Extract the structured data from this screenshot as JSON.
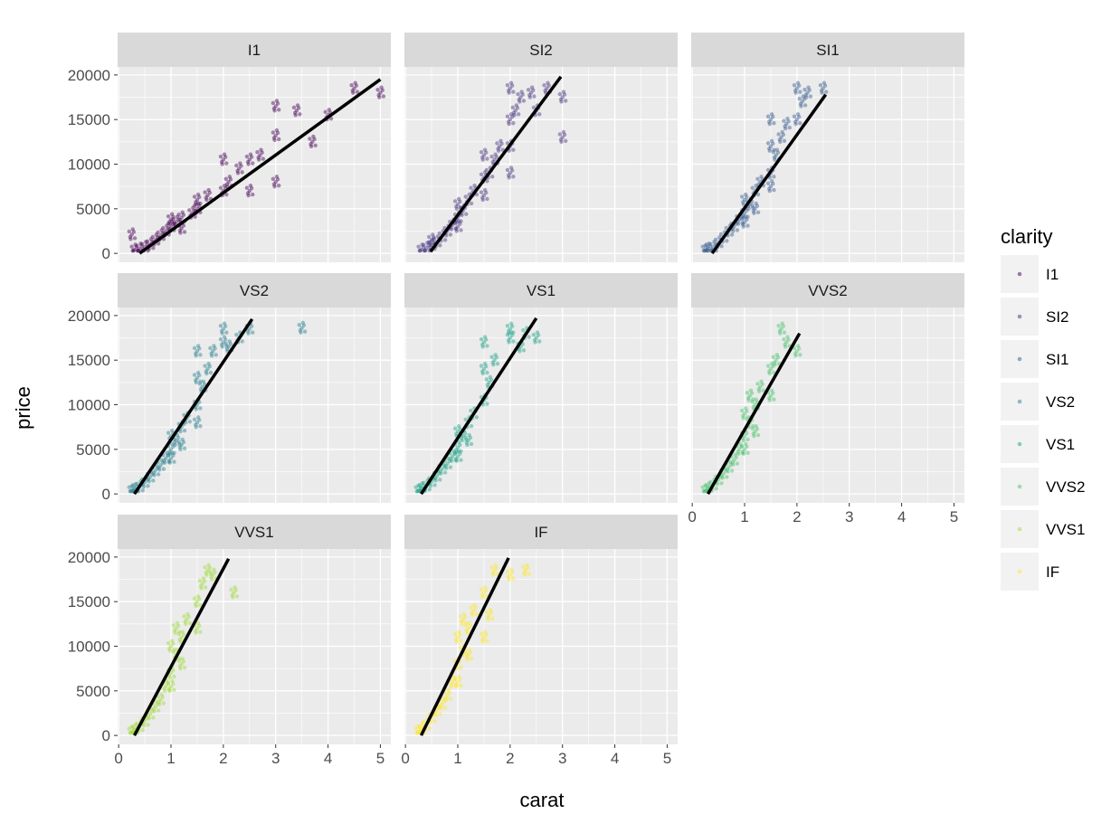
{
  "chart_data": {
    "type": "scatter",
    "title": "",
    "xlabel": "carat",
    "ylabel": "price",
    "xlim": [
      -0.02,
      5.2
    ],
    "ylim": [
      -1000,
      20900
    ],
    "xticks": [
      0,
      1,
      2,
      3,
      4,
      5
    ],
    "yticks": [
      0,
      5000,
      10000,
      15000,
      20000
    ],
    "grid": true,
    "facet_by": "clarity",
    "legend": {
      "title": "clarity",
      "position": "right"
    },
    "series": [
      {
        "name": "I1",
        "color": "#440154",
        "fit_line": [
          [
            0.4,
            0
          ],
          [
            5.0,
            19500
          ]
        ],
        "points": [
          [
            0.3,
            400
          ],
          [
            0.4,
            500
          ],
          [
            0.5,
            700
          ],
          [
            0.6,
            1000
          ],
          [
            0.7,
            1500
          ],
          [
            0.8,
            2000
          ],
          [
            0.9,
            2500
          ],
          [
            1.0,
            3000
          ],
          [
            1.0,
            3800
          ],
          [
            1.1,
            3500
          ],
          [
            1.2,
            4000
          ],
          [
            1.5,
            5000
          ],
          [
            1.5,
            6000
          ],
          [
            1.4,
            4500
          ],
          [
            1.7,
            6500
          ],
          [
            2.0,
            7000
          ],
          [
            2.0,
            10500
          ],
          [
            2.1,
            8000
          ],
          [
            2.3,
            9500
          ],
          [
            2.5,
            10500
          ],
          [
            2.7,
            11000
          ],
          [
            3.0,
            13200
          ],
          [
            3.0,
            16500
          ],
          [
            3.0,
            8000
          ],
          [
            3.4,
            16000
          ],
          [
            3.7,
            12500
          ],
          [
            4.0,
            15500
          ],
          [
            4.5,
            18500
          ],
          [
            5.0,
            18000
          ],
          [
            0.25,
            2100
          ],
          [
            1.2,
            2800
          ],
          [
            2.5,
            7000
          ]
        ]
      },
      {
        "name": "SI2",
        "color": "#46327e",
        "fit_line": [
          [
            0.48,
            200
          ],
          [
            2.97,
            19800
          ]
        ],
        "points": [
          [
            0.3,
            400
          ],
          [
            0.4,
            600
          ],
          [
            0.5,
            900
          ],
          [
            0.6,
            1300
          ],
          [
            0.7,
            1900
          ],
          [
            0.8,
            2500
          ],
          [
            0.9,
            3200
          ],
          [
            1.0,
            4000
          ],
          [
            1.0,
            5500
          ],
          [
            1.1,
            4800
          ],
          [
            1.2,
            6000
          ],
          [
            1.3,
            7000
          ],
          [
            1.5,
            8500
          ],
          [
            1.5,
            11000
          ],
          [
            1.6,
            9000
          ],
          [
            1.7,
            10500
          ],
          [
            1.8,
            12000
          ],
          [
            2.0,
            12000
          ],
          [
            2.0,
            15000
          ],
          [
            2.0,
            18500
          ],
          [
            2.1,
            16000
          ],
          [
            2.2,
            17500
          ],
          [
            2.4,
            18000
          ],
          [
            2.5,
            16000
          ],
          [
            2.7,
            18500
          ],
          [
            3.0,
            17500
          ],
          [
            3.0,
            13000
          ],
          [
            0.5,
            1500
          ],
          [
            1.0,
            3000
          ],
          [
            1.5,
            6500
          ],
          [
            2.0,
            9000
          ]
        ]
      },
      {
        "name": "SI1",
        "color": "#365c8d",
        "fit_line": [
          [
            0.38,
            0
          ],
          [
            2.55,
            17800
          ]
        ],
        "points": [
          [
            0.25,
            400
          ],
          [
            0.3,
            500
          ],
          [
            0.4,
            700
          ],
          [
            0.5,
            1200
          ],
          [
            0.6,
            1800
          ],
          [
            0.7,
            2500
          ],
          [
            0.8,
            3000
          ],
          [
            0.9,
            3800
          ],
          [
            1.0,
            4500
          ],
          [
            1.0,
            6000
          ],
          [
            1.1,
            5500
          ],
          [
            1.2,
            7000
          ],
          [
            1.3,
            8000
          ],
          [
            1.5,
            9000
          ],
          [
            1.5,
            12000
          ],
          [
            1.5,
            15000
          ],
          [
            1.6,
            11000
          ],
          [
            1.7,
            13000
          ],
          [
            1.8,
            14500
          ],
          [
            2.0,
            15000
          ],
          [
            2.0,
            18500
          ],
          [
            2.1,
            17000
          ],
          [
            2.2,
            18000
          ],
          [
            2.5,
            18500
          ],
          [
            1.0,
            3500
          ],
          [
            1.2,
            5000
          ],
          [
            1.5,
            7500
          ]
        ]
      },
      {
        "name": "VS2",
        "color": "#277f8e",
        "fit_line": [
          [
            0.3,
            0
          ],
          [
            2.55,
            19600
          ]
        ],
        "points": [
          [
            0.25,
            400
          ],
          [
            0.3,
            500
          ],
          [
            0.4,
            800
          ],
          [
            0.5,
            1300
          ],
          [
            0.6,
            1900
          ],
          [
            0.7,
            2600
          ],
          [
            0.8,
            3200
          ],
          [
            0.9,
            4000
          ],
          [
            1.0,
            5000
          ],
          [
            1.0,
            6500
          ],
          [
            1.1,
            6000
          ],
          [
            1.2,
            7500
          ],
          [
            1.3,
            8500
          ],
          [
            1.5,
            10000
          ],
          [
            1.5,
            13000
          ],
          [
            1.5,
            16000
          ],
          [
            1.6,
            12000
          ],
          [
            1.7,
            14000
          ],
          [
            1.8,
            16000
          ],
          [
            2.0,
            17000
          ],
          [
            2.0,
            18500
          ],
          [
            2.1,
            16500
          ],
          [
            2.3,
            17500
          ],
          [
            2.5,
            18500
          ],
          [
            3.5,
            18600
          ],
          [
            1.0,
            4000
          ],
          [
            1.2,
            5500
          ],
          [
            1.5,
            8000
          ]
        ]
      },
      {
        "name": "VS1",
        "color": "#1fa187",
        "fit_line": [
          [
            0.3,
            0
          ],
          [
            2.5,
            19700
          ]
        ],
        "points": [
          [
            0.25,
            400
          ],
          [
            0.3,
            600
          ],
          [
            0.4,
            900
          ],
          [
            0.5,
            1400
          ],
          [
            0.6,
            2000
          ],
          [
            0.7,
            2800
          ],
          [
            0.8,
            3400
          ],
          [
            0.9,
            4200
          ],
          [
            1.0,
            5200
          ],
          [
            1.0,
            7000
          ],
          [
            1.1,
            6500
          ],
          [
            1.2,
            8000
          ],
          [
            1.3,
            9000
          ],
          [
            1.5,
            10500
          ],
          [
            1.5,
            14000
          ],
          [
            1.5,
            17000
          ],
          [
            1.6,
            12500
          ],
          [
            1.7,
            15000
          ],
          [
            2.0,
            17500
          ],
          [
            2.0,
            18500
          ],
          [
            2.2,
            16500
          ],
          [
            2.3,
            18000
          ],
          [
            2.5,
            17500
          ],
          [
            1.0,
            4200
          ],
          [
            1.2,
            6000
          ]
        ]
      },
      {
        "name": "VVS2",
        "color": "#4ac16d",
        "fit_line": [
          [
            0.3,
            0
          ],
          [
            2.05,
            18000
          ]
        ],
        "points": [
          [
            0.25,
            400
          ],
          [
            0.3,
            600
          ],
          [
            0.4,
            1000
          ],
          [
            0.5,
            1600
          ],
          [
            0.6,
            2300
          ],
          [
            0.7,
            3000
          ],
          [
            0.8,
            3800
          ],
          [
            0.9,
            5000
          ],
          [
            1.0,
            6500
          ],
          [
            1.0,
            9000
          ],
          [
            1.1,
            8000
          ],
          [
            1.1,
            11000
          ],
          [
            1.2,
            10000
          ],
          [
            1.3,
            12000
          ],
          [
            1.5,
            11000
          ],
          [
            1.5,
            14000
          ],
          [
            1.6,
            15000
          ],
          [
            1.7,
            18500
          ],
          [
            1.8,
            17000
          ],
          [
            2.0,
            16000
          ],
          [
            1.0,
            5000
          ],
          [
            1.2,
            7000
          ]
        ]
      },
      {
        "name": "VVS1",
        "color": "#a0da39",
        "fit_line": [
          [
            0.3,
            0
          ],
          [
            2.1,
            19800
          ]
        ],
        "points": [
          [
            0.25,
            400
          ],
          [
            0.3,
            600
          ],
          [
            0.4,
            1000
          ],
          [
            0.5,
            1600
          ],
          [
            0.6,
            2400
          ],
          [
            0.7,
            3200
          ],
          [
            0.8,
            4000
          ],
          [
            0.9,
            5500
          ],
          [
            1.0,
            7000
          ],
          [
            1.0,
            10000
          ],
          [
            1.1,
            9000
          ],
          [
            1.1,
            12000
          ],
          [
            1.2,
            11000
          ],
          [
            1.3,
            13000
          ],
          [
            1.5,
            12000
          ],
          [
            1.5,
            15000
          ],
          [
            1.6,
            17000
          ],
          [
            1.7,
            18500
          ],
          [
            1.8,
            18000
          ],
          [
            2.2,
            16000
          ],
          [
            1.0,
            5500
          ],
          [
            1.2,
            8000
          ]
        ]
      },
      {
        "name": "IF",
        "color": "#fde725",
        "fit_line": [
          [
            0.3,
            0
          ],
          [
            1.97,
            19900
          ]
        ],
        "points": [
          [
            0.25,
            400
          ],
          [
            0.3,
            700
          ],
          [
            0.4,
            1200
          ],
          [
            0.5,
            2000
          ],
          [
            0.6,
            2800
          ],
          [
            0.7,
            3500
          ],
          [
            0.8,
            4500
          ],
          [
            0.9,
            6000
          ],
          [
            1.0,
            8000
          ],
          [
            1.0,
            11000
          ],
          [
            1.1,
            9500
          ],
          [
            1.1,
            13000
          ],
          [
            1.2,
            12000
          ],
          [
            1.3,
            14000
          ],
          [
            1.5,
            11000
          ],
          [
            1.5,
            16000
          ],
          [
            1.6,
            13500
          ],
          [
            1.7,
            18500
          ],
          [
            2.0,
            18000
          ],
          [
            2.3,
            18500
          ],
          [
            1.0,
            6000
          ],
          [
            1.2,
            9000
          ]
        ]
      }
    ]
  }
}
